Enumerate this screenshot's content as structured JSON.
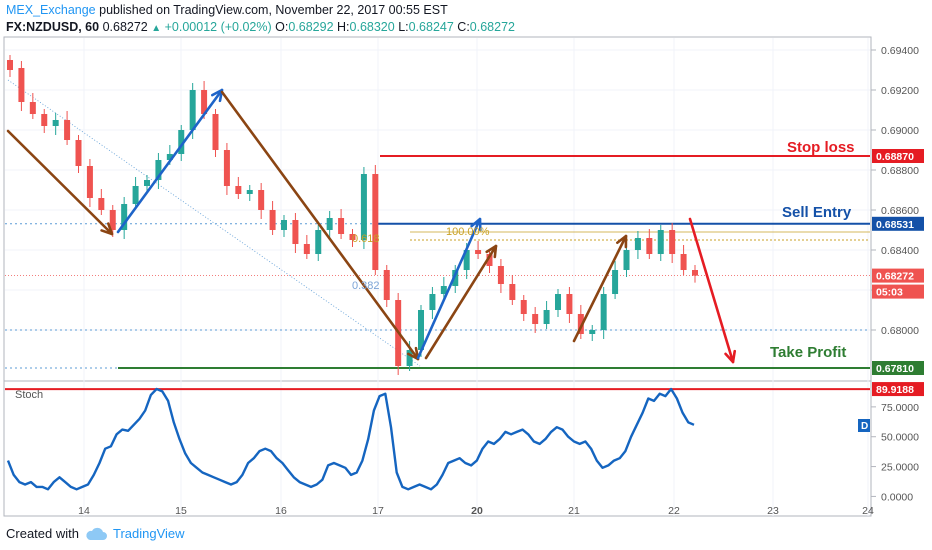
{
  "header": {
    "author": "MEX_Exchange",
    "published": "published on TradingView.com, November 22, 2017 00:55 EST",
    "symbol": "FX:NZDUSD, 60",
    "last": "0.68272",
    "change": "+0.00012 (+0.02%)",
    "open_label": "O:",
    "open": "0.68292",
    "high_label": "H:",
    "high": "0.68320",
    "low_label": "L:",
    "low": "0.68247",
    "close_label": "C:",
    "close": "0.68272"
  },
  "colors": {
    "bull": "#26a69a",
    "bear": "#ef5350",
    "stoploss": "#e51c23",
    "entry": "#1451a8",
    "takeprofit": "#2e7d32",
    "arrow_brown": "#8b4513",
    "arrow_blue": "#1e64c8",
    "arrow_red": "#e51c23",
    "fib": "#c9a227",
    "stoch": "#1565c0"
  },
  "annotations": {
    "stop_loss": "Stop loss",
    "sell_entry": "Sell Entry",
    "take_profit": "Take Profit",
    "fib_618": "0.618",
    "fib_1000": "100.00%",
    "fib_382": "0.382",
    "stoch_label": "Stoch",
    "stoch_tag": "D"
  },
  "price_tags": {
    "stop_loss": "0.68870",
    "sell_entry": "0.68531",
    "last": "0.68272",
    "countdown": "05:03",
    "take_profit": "0.67810",
    "stoch_level": "89.9188"
  },
  "footer": {
    "created_with": "Created with",
    "brand": "TradingView"
  },
  "chart_data": [
    {
      "type": "candlestick",
      "symbol": "NZDUSD",
      "timeframe": "60",
      "ylim": [
        0.6775,
        0.6946
      ],
      "y_ticks": [
        0.68,
        0.682,
        0.684,
        0.686,
        0.688,
        0.69,
        0.692,
        0.694
      ],
      "y_tick_labels": [
        "0.68000",
        "",
        "0.68400",
        "0.68600",
        "0.68800",
        "0.69000",
        "0.69200",
        "0.69400"
      ],
      "x_tick_labels": [
        "14",
        "15",
        "16",
        "17",
        "20",
        "21",
        "22",
        "23",
        "24"
      ],
      "levels": {
        "stop_loss": 0.6887,
        "sell_entry": 0.68531,
        "take_profit": 0.6781,
        "last": 0.68272
      },
      "price_path": [
        [
          0.6935,
          0.693
        ],
        [
          0.6931,
          0.6914
        ],
        [
          0.6914,
          0.6908
        ],
        [
          0.6908,
          0.6902
        ],
        [
          0.6902,
          0.6905
        ],
        [
          0.6905,
          0.6895
        ],
        [
          0.6895,
          0.6882
        ],
        [
          0.6882,
          0.6866
        ],
        [
          0.6866,
          0.686
        ],
        [
          0.686,
          0.685
        ],
        [
          0.685,
          0.6863
        ],
        [
          0.6863,
          0.6872
        ],
        [
          0.6872,
          0.6875
        ],
        [
          0.6875,
          0.6885
        ],
        [
          0.6885,
          0.6888
        ],
        [
          0.6888,
          0.69
        ],
        [
          0.69,
          0.692
        ],
        [
          0.692,
          0.6908
        ],
        [
          0.6908,
          0.689
        ],
        [
          0.689,
          0.6872
        ],
        [
          0.6872,
          0.6868
        ],
        [
          0.6868,
          0.687
        ],
        [
          0.687,
          0.686
        ],
        [
          0.686,
          0.685
        ],
        [
          0.685,
          0.6855
        ],
        [
          0.6855,
          0.6843
        ],
        [
          0.6843,
          0.6838
        ],
        [
          0.6838,
          0.685
        ],
        [
          0.685,
          0.6856
        ],
        [
          0.6856,
          0.6848
        ],
        [
          0.6848,
          0.6845
        ],
        [
          0.6845,
          0.6878
        ],
        [
          0.6878,
          0.683
        ],
        [
          0.683,
          0.6815
        ],
        [
          0.6815,
          0.6782
        ],
        [
          0.6782,
          0.679
        ],
        [
          0.679,
          0.681
        ],
        [
          0.681,
          0.6818
        ],
        [
          0.6818,
          0.6822
        ],
        [
          0.6822,
          0.683
        ],
        [
          0.683,
          0.684
        ],
        [
          0.684,
          0.6838
        ],
        [
          0.6838,
          0.6832
        ],
        [
          0.6832,
          0.6823
        ],
        [
          0.6823,
          0.6815
        ],
        [
          0.6815,
          0.6808
        ],
        [
          0.6808,
          0.6803
        ],
        [
          0.6803,
          0.681
        ],
        [
          0.681,
          0.6818
        ],
        [
          0.6818,
          0.6808
        ],
        [
          0.6808,
          0.6798
        ],
        [
          0.6798,
          0.68
        ],
        [
          0.68,
          0.6818
        ],
        [
          0.6818,
          0.683
        ],
        [
          0.683,
          0.684
        ],
        [
          0.684,
          0.6846
        ],
        [
          0.6846,
          0.6838
        ],
        [
          0.6838,
          0.685
        ],
        [
          0.685,
          0.6838
        ],
        [
          0.6838,
          0.683
        ],
        [
          0.683,
          0.68272
        ]
      ]
    },
    {
      "type": "line",
      "name": "Stoch",
      "ylim": [
        -3,
        95
      ],
      "y_ticks": [
        0,
        25,
        50,
        75
      ],
      "y_tick_labels": [
        "0.0000",
        "25.0000",
        "50.0000",
        "75.0000"
      ],
      "overbought_level": 89.9188,
      "values": [
        30,
        18,
        12,
        10,
        12,
        8,
        8,
        6,
        12,
        16,
        12,
        8,
        6,
        8,
        10,
        18,
        28,
        40,
        42,
        52,
        56,
        55,
        60,
        65,
        72,
        85,
        90,
        88,
        80,
        62,
        48,
        36,
        28,
        24,
        20,
        18,
        16,
        14,
        12,
        10,
        12,
        18,
        28,
        32,
        38,
        40,
        38,
        32,
        28,
        22,
        16,
        12,
        10,
        8,
        10,
        14,
        26,
        28,
        26,
        24,
        18,
        20,
        30,
        48,
        72,
        84,
        86,
        58,
        20,
        8,
        6,
        8,
        10,
        8,
        6,
        10,
        18,
        28,
        30,
        32,
        28,
        26,
        30,
        40,
        46,
        44,
        48,
        54,
        52,
        54,
        56,
        52,
        46,
        44,
        48,
        54,
        58,
        56,
        50,
        46,
        44,
        46,
        40,
        30,
        24,
        26,
        30,
        32,
        38,
        50,
        60,
        70,
        82,
        80,
        86,
        84,
        90,
        82,
        70,
        62,
        60
      ]
    }
  ]
}
